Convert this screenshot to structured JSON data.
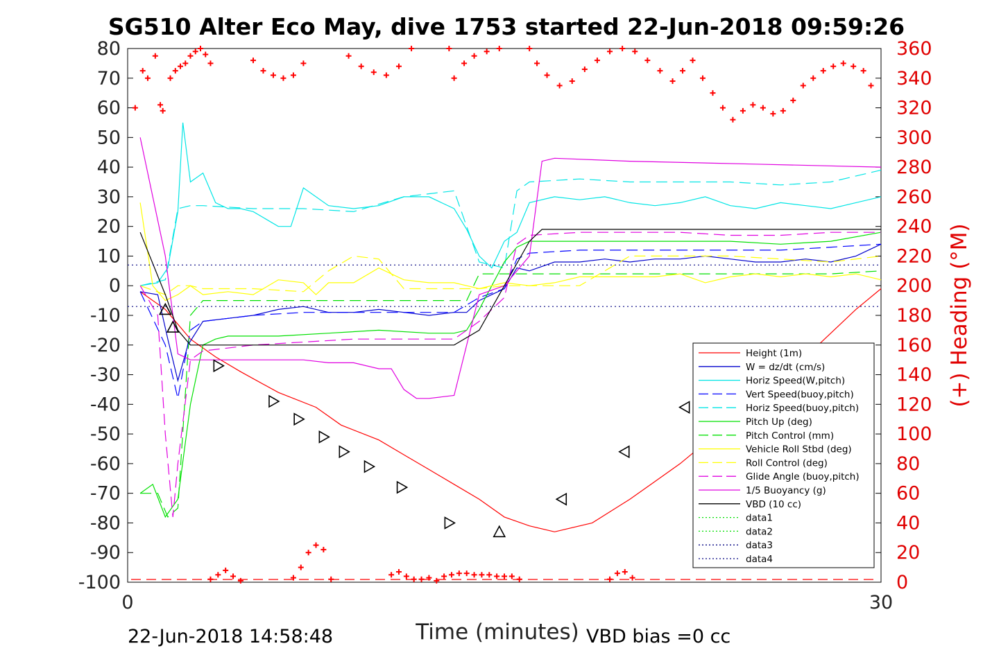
{
  "chart_data": {
    "type": "line",
    "title": "SG510 Alter Eco May, dive 1753 started 22-Jun-2018 09:59:26",
    "xlabel": "Time (minutes)",
    "ylabel": "",
    "y2label": "(+) Heading (°M)",
    "xlim": [
      0,
      30
    ],
    "ylim": [
      -100,
      80
    ],
    "y2lim": [
      0,
      360
    ],
    "x_ticks": [
      "0",
      "30"
    ],
    "y_ticks": [
      "80",
      "70",
      "60",
      "50",
      "40",
      "30",
      "20",
      "10",
      "0",
      "-10",
      "-20",
      "-30",
      "-40",
      "-50",
      "-60",
      "-70",
      "-80",
      "-90",
      "-100"
    ],
    "y2_ticks": [
      "360",
      "340",
      "320",
      "300",
      "280",
      "260",
      "240",
      "220",
      "200",
      "180",
      "160",
      "140",
      "120",
      "100",
      "80",
      "60",
      "40",
      "20",
      "0"
    ],
    "footer_left": "22-Jun-2018 14:58:48",
    "footer_right": "VBD bias =0 cc",
    "legend_position": "bottom-right",
    "grid": false,
    "series": [
      {
        "name": "Height (1m)",
        "color": "#ff0000",
        "style": "solid",
        "x": [
          0.5,
          1.5,
          2.5,
          3.5,
          4.5,
          6,
          7.5,
          8.5,
          10,
          11,
          12,
          13,
          14,
          15,
          16,
          17,
          18.5,
          20,
          21,
          22,
          23,
          24,
          25,
          26,
          27,
          28,
          29,
          30
        ],
        "y": [
          -2,
          -8,
          -18,
          -24,
          -29,
          -36,
          -41,
          -47,
          -52,
          -57,
          -62,
          -67,
          -72,
          -78,
          -81,
          -83,
          -80,
          -72,
          -66,
          -60,
          -53,
          -46,
          -39,
          -32,
          -24,
          -16,
          -8,
          -1
        ]
      },
      {
        "name": "W = dz/dt (cm/s)",
        "color": "#0000cc",
        "style": "solid",
        "x": [
          0.5,
          1.2,
          1.6,
          2,
          2.4,
          3,
          4,
          5,
          6,
          7,
          8,
          9,
          10,
          11,
          12,
          13,
          13.5,
          14,
          14.5,
          15,
          15.5,
          16,
          17,
          18,
          19,
          20,
          21,
          22,
          23,
          24,
          25,
          26,
          27,
          28,
          29,
          30
        ],
        "y": [
          -2,
          -3,
          -18,
          -32,
          -20,
          -12,
          -11,
          -10,
          -8,
          -7,
          -9,
          -9,
          -8,
          -9,
          -10,
          -9,
          -9,
          -5,
          -3,
          -1,
          6,
          5,
          8,
          8,
          9,
          8,
          9,
          9,
          10,
          9,
          8,
          8,
          9,
          8,
          10,
          14
        ]
      },
      {
        "name": "Horiz Speed(W,pitch)",
        "color": "#00e5e5",
        "style": "solid",
        "x": [
          0.5,
          1.2,
          1.6,
          2,
          2.2,
          2.5,
          3,
          3.5,
          4,
          4.5,
          5,
          6,
          6.5,
          7,
          8,
          9,
          10,
          11,
          12,
          13,
          13.5,
          14,
          14.5,
          15,
          15.5,
          16,
          17,
          18,
          19,
          20,
          21,
          22,
          23,
          24,
          25,
          26,
          27,
          28,
          29,
          30
        ],
        "y": [
          0,
          1,
          6,
          25,
          55,
          35,
          38,
          28,
          26,
          26,
          25,
          20,
          20,
          33,
          27,
          26,
          27,
          30,
          30,
          26,
          19,
          10,
          6,
          15,
          18,
          28,
          30,
          29,
          30,
          28,
          27,
          28,
          30,
          27,
          26,
          28,
          27,
          26,
          28,
          30
        ]
      },
      {
        "name": "Vert Speed(buoy,pitch)",
        "color": "#0000ff",
        "style": "dashed",
        "x": [
          0.5,
          1.5,
          2,
          2.5,
          3,
          5,
          7,
          9,
          11,
          13,
          14,
          15,
          15.5,
          16,
          18,
          20,
          22,
          24,
          26,
          28,
          30
        ],
        "y": [
          -2,
          -20,
          -38,
          -15,
          -12,
          -10,
          -9,
          -9,
          -9,
          -9,
          -4,
          -1,
          9,
          11,
          12,
          12,
          12,
          12,
          12,
          13,
          14
        ]
      },
      {
        "name": "Horiz Speed(buoy,pitch)",
        "color": "#00e5e5",
        "style": "dashed",
        "x": [
          0.5,
          1.5,
          2,
          2.5,
          3,
          5,
          7,
          9,
          11,
          13,
          14,
          15,
          15.5,
          16,
          18,
          20,
          22,
          24,
          26,
          28,
          30
        ],
        "y": [
          0,
          2,
          26,
          27,
          27,
          26,
          26,
          25,
          30,
          32,
          8,
          6,
          32,
          35,
          36,
          35,
          35,
          35,
          34,
          35,
          39
        ]
      },
      {
        "name": "Pitch Up (deg)",
        "color": "#00e000",
        "style": "solid",
        "x": [
          0.5,
          1,
          1.5,
          2,
          2.5,
          3,
          3.5,
          4,
          6,
          8,
          10,
          12,
          13,
          13.5,
          14,
          14.5,
          15,
          15.5,
          16,
          18,
          20,
          22,
          24,
          26,
          28,
          30
        ],
        "y": [
          -70,
          -67,
          -78,
          -72,
          -40,
          -20,
          -18,
          -17,
          -17,
          -16,
          -15,
          -16,
          -16,
          -15,
          -8,
          0,
          8,
          13,
          15,
          15,
          15,
          15,
          15,
          14,
          15,
          18
        ]
      },
      {
        "name": "Pitch Control (mm)",
        "color": "#00e000",
        "style": "dashed",
        "x": [
          0.5,
          1.2,
          1.6,
          2,
          2.5,
          3,
          5,
          8,
          10,
          13,
          13.5,
          14,
          15,
          16,
          18,
          20,
          22,
          24,
          26,
          28,
          30
        ],
        "y": [
          -70,
          -70,
          -78,
          -75,
          -10,
          -5,
          -5,
          -5,
          -5,
          -5,
          -5,
          4,
          4,
          4,
          4,
          4,
          4,
          4,
          4,
          4,
          5
        ]
      },
      {
        "name": "Vehicle Roll Stbd (deg)",
        "color": "#ffff00",
        "style": "solid",
        "x": [
          0.5,
          1,
          1.5,
          2,
          2.5,
          3,
          4,
          5,
          6,
          7,
          7.5,
          8,
          9,
          10,
          11,
          12,
          13,
          13.5,
          14,
          15,
          16,
          17,
          18,
          19,
          20,
          21,
          22,
          23,
          24,
          25,
          26,
          27,
          28,
          29,
          30
        ],
        "y": [
          28,
          0,
          -5,
          -3,
          0,
          -3,
          -2,
          -3,
          2,
          1,
          -3,
          1,
          1,
          6,
          2,
          1,
          1,
          0,
          -1,
          1,
          0,
          1,
          3,
          3,
          3,
          3,
          4,
          1,
          3,
          4,
          3,
          4,
          3,
          4,
          2
        ]
      },
      {
        "name": "Roll Control (deg)",
        "color": "#ffff00",
        "style": "dashed",
        "x": [
          0.5,
          1.5,
          2,
          2.5,
          3,
          5,
          7,
          8,
          9,
          10,
          11,
          12,
          13,
          14,
          15,
          16,
          18,
          20,
          22,
          24,
          26,
          28,
          30
        ],
        "y": [
          0,
          -3,
          0,
          0,
          -1,
          -1,
          -2,
          5,
          10,
          9,
          -1,
          -1,
          -1,
          -1,
          0,
          0,
          0,
          10,
          10,
          10,
          9,
          8,
          10
        ]
      },
      {
        "name": "Glide Angle (buoy,pitch)",
        "color": "#e000e0",
        "style": "dashed",
        "x": [
          0.5,
          1.2,
          1.5,
          1.8,
          2,
          2.5,
          3,
          5,
          7,
          9,
          11,
          13,
          14,
          15,
          15.5,
          16,
          18,
          20,
          22,
          24,
          26,
          28,
          30
        ],
        "y": [
          0,
          -10,
          -50,
          -78,
          -60,
          -25,
          -22,
          -20,
          -19,
          -18,
          -18,
          -18,
          -12,
          -4,
          14,
          17,
          18,
          18,
          18,
          17,
          17,
          18,
          18
        ]
      },
      {
        "name": "1/5 Buoyancy (g)",
        "color": "#e000e0",
        "style": "solid",
        "x": [
          0.5,
          1.5,
          2,
          2.5,
          3,
          4,
          5,
          6,
          7,
          8,
          9,
          10,
          10.5,
          11,
          11.5,
          12,
          13,
          14,
          15,
          16,
          16.5,
          17,
          20,
          25,
          30
        ],
        "y": [
          50,
          10,
          -23,
          -25,
          -25,
          -25,
          -25,
          -25,
          -25,
          -26,
          -26,
          -28,
          -28,
          -35,
          -38,
          -38,
          -37,
          -3,
          0,
          10,
          42,
          43,
          42,
          41,
          40
        ]
      },
      {
        "name": "VBD (10 cc)",
        "color": "#000000",
        "style": "solid",
        "x": [
          0.5,
          1.5,
          2,
          2.5,
          3,
          5,
          8,
          11,
          13,
          14,
          15,
          16,
          16.5,
          17,
          20,
          25,
          30
        ],
        "y": [
          18,
          -3,
          -15,
          -20,
          -20,
          -20,
          -20,
          -20,
          -20,
          -15,
          0,
          15,
          19,
          19,
          19,
          19,
          19
        ]
      },
      {
        "name": "data1",
        "color": "#00e000",
        "style": "dotted",
        "x": [],
        "y": []
      },
      {
        "name": "data2",
        "color": "#00e000",
        "style": "dotted",
        "x": [],
        "y": []
      },
      {
        "name": "data3",
        "color": "#000080",
        "style": "dotted",
        "x": [
          0,
          30
        ],
        "y": [
          7,
          7
        ]
      },
      {
        "name": "data4",
        "color": "#000080",
        "style": "dotted",
        "x": [
          0,
          30
        ],
        "y": [
          -7,
          -7
        ]
      }
    ],
    "heading_points": {
      "color": "#ff0000",
      "x": [
        0.3,
        0.6,
        0.8,
        1.1,
        1.3,
        1.4,
        1.7,
        1.9,
        2.1,
        2.3,
        2.5,
        2.7,
        2.9,
        3.1,
        3.3,
        5,
        5.4,
        5.8,
        6.2,
        6.6,
        7,
        8.8,
        9.3,
        9.8,
        10.3,
        10.8,
        11.3,
        12.8,
        13,
        13.4,
        13.8,
        14.3,
        14.8,
        16,
        16.3,
        16.7,
        17.2,
        17.7,
        18.2,
        18.7,
        19.2,
        19.7,
        20.2,
        20.7,
        21.2,
        21.7,
        22.1,
        22.5,
        22.9,
        23.3,
        23.7,
        24.1,
        24.5,
        24.9,
        25.3,
        25.7,
        26.1,
        26.5,
        26.9,
        27.3,
        27.7,
        28.1,
        28.5,
        28.9,
        29.3,
        29.6
      ],
      "y": [
        320,
        345,
        340,
        355,
        322,
        318,
        340,
        345,
        348,
        350,
        355,
        358,
        360,
        356,
        350,
        352,
        345,
        342,
        340,
        342,
        350,
        355,
        348,
        344,
        342,
        348,
        360,
        360,
        340,
        350,
        355,
        358,
        360,
        360,
        350,
        342,
        335,
        338,
        346,
        352,
        358,
        360,
        358,
        352,
        345,
        338,
        345,
        352,
        340,
        330,
        320,
        312,
        318,
        322,
        320,
        316,
        318,
        325,
        335,
        340,
        345,
        348,
        350,
        348,
        345,
        335
      ]
    },
    "heading_low_points": {
      "x": [
        3.3,
        3.6,
        3.9,
        4.2,
        4.5,
        6.6,
        6.9,
        7.2,
        7.5,
        7.8,
        8.1,
        10.5,
        10.8,
        11.1,
        11.4,
        11.7,
        12,
        12.3,
        12.6,
        12.9,
        13.2,
        13.5,
        13.8,
        14.1,
        14.4,
        14.7,
        15,
        15.3,
        15.6,
        19.2,
        19.5,
        19.8,
        20.1
      ],
      "y": [
        2,
        5,
        8,
        4,
        1,
        3,
        10,
        20,
        25,
        22,
        2,
        5,
        7,
        4,
        2,
        2,
        3,
        1,
        4,
        5,
        6,
        6,
        5,
        5,
        5,
        4,
        4,
        4,
        2,
        2,
        6,
        7,
        3
      ]
    },
    "glide_markers": {
      "x": [
        1.5,
        1.8,
        3.6,
        5.8,
        6.8,
        7.8,
        8.6,
        9.6,
        10.9,
        12.8,
        14.8,
        17.3,
        19.8,
        22.2
      ],
      "y": [
        -8,
        -14,
        -27,
        -39,
        -45,
        -51,
        -56,
        -61,
        -68,
        -80,
        -83,
        -72,
        -56,
        -41
      ]
    }
  }
}
